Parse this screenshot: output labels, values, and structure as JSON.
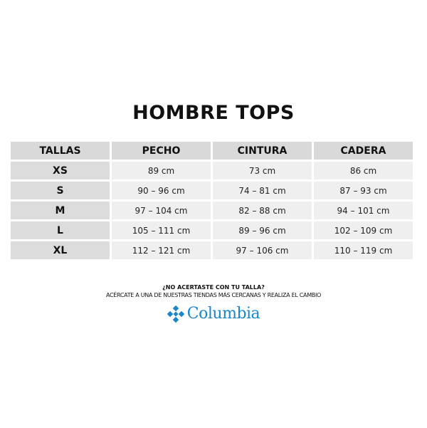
{
  "title": "HOMBRE TOPS",
  "table": {
    "headers": [
      "TALLAS",
      "PECHO",
      "CINTURA",
      "CADERA"
    ],
    "rows": [
      [
        "XS",
        "89 cm",
        "73 cm",
        "86 cm"
      ],
      [
        "S",
        "90 – 96 cm",
        "74 – 81 cm",
        "87 – 93 cm"
      ],
      [
        "M",
        "97 – 104 cm",
        "82 – 88 cm",
        "94 – 101 cm"
      ],
      [
        "L",
        "105 – 111 cm",
        "89 – 96 cm",
        "102 – 109 cm"
      ],
      [
        "XL",
        "112 – 121 cm",
        "97 – 106 cm",
        "110 – 119 cm"
      ]
    ]
  },
  "footer": {
    "question": "¿NO ACERTASTE CON TU TALLA?",
    "subtext": "ACÉRCATE A UNA DE NUESTRAS TIENDAS MÁS CERCANAS Y REALIZA EL CAMBIO",
    "brand": "Columbia",
    "brand_color": "#1a86c9"
  }
}
